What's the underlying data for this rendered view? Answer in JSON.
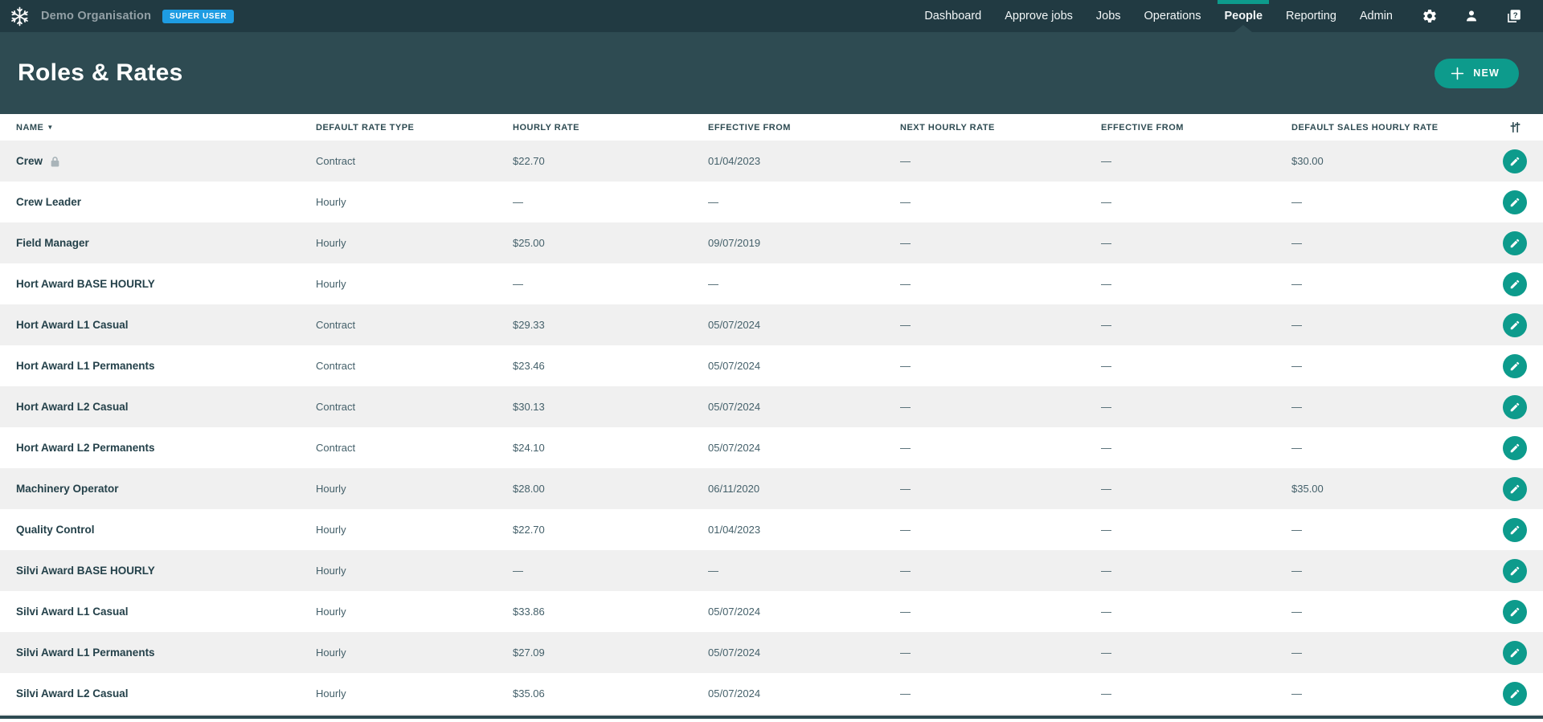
{
  "colors": {
    "topbar_bg": "#213A42",
    "header_bg": "#2E4B52",
    "accent_teal": "#0D9B8C",
    "badge_blue": "#1E9CE2",
    "row_alt_bg": "#F0F0F0",
    "header_text": "#2E4B52",
    "cell_text": "#44606A",
    "name_text": "#24414A"
  },
  "topbar": {
    "logo_icon": "snowflake-icon",
    "org_name": "Demo Organisation",
    "badge": "SUPER USER",
    "nav": [
      {
        "label": "Dashboard",
        "active": false
      },
      {
        "label": "Approve jobs",
        "active": false
      },
      {
        "label": "Jobs",
        "active": false
      },
      {
        "label": "Operations",
        "active": false
      },
      {
        "label": "People",
        "active": true
      },
      {
        "label": "Reporting",
        "active": false
      },
      {
        "label": "Admin",
        "active": false
      }
    ],
    "icons": [
      "gear-icon",
      "user-icon",
      "help-icon"
    ]
  },
  "header": {
    "title": "Roles & Rates",
    "new_button_label": "NEW",
    "new_button_icon": "plus-icon"
  },
  "table": {
    "columns": [
      {
        "key": "name",
        "label": "NAME",
        "sort": "desc"
      },
      {
        "key": "rate_type",
        "label": "DEFAULT RATE TYPE"
      },
      {
        "key": "hourly_rate",
        "label": "HOURLY RATE"
      },
      {
        "key": "effective_from",
        "label": "EFFECTIVE FROM"
      },
      {
        "key": "next_hourly_rate",
        "label": "NEXT HOURLY RATE"
      },
      {
        "key": "next_effective_from",
        "label": "EFFECTIVE FROM"
      },
      {
        "key": "sales_rate",
        "label": "DEFAULT SALES HOURLY RATE"
      }
    ],
    "header_icon": "column-settings-icon",
    "row_action_icon": "pencil-icon",
    "rows": [
      {
        "name": "Crew",
        "locked": true,
        "rate_type": "Contract",
        "hourly_rate": "$22.70",
        "effective_from": "01/04/2023",
        "next_hourly_rate": "—",
        "next_effective_from": "—",
        "sales_rate": "$30.00"
      },
      {
        "name": "Crew Leader",
        "locked": false,
        "rate_type": "Hourly",
        "hourly_rate": "—",
        "effective_from": "—",
        "next_hourly_rate": "—",
        "next_effective_from": "—",
        "sales_rate": "—"
      },
      {
        "name": "Field Manager",
        "locked": false,
        "rate_type": "Hourly",
        "hourly_rate": "$25.00",
        "effective_from": "09/07/2019",
        "next_hourly_rate": "—",
        "next_effective_from": "—",
        "sales_rate": "—"
      },
      {
        "name": "Hort Award BASE HOURLY",
        "locked": false,
        "rate_type": "Hourly",
        "hourly_rate": "—",
        "effective_from": "—",
        "next_hourly_rate": "—",
        "next_effective_from": "—",
        "sales_rate": "—"
      },
      {
        "name": "Hort Award L1 Casual",
        "locked": false,
        "rate_type": "Contract",
        "hourly_rate": "$29.33",
        "effective_from": "05/07/2024",
        "next_hourly_rate": "—",
        "next_effective_from": "—",
        "sales_rate": "—"
      },
      {
        "name": "Hort Award L1 Permanents",
        "locked": false,
        "rate_type": "Contract",
        "hourly_rate": "$23.46",
        "effective_from": "05/07/2024",
        "next_hourly_rate": "—",
        "next_effective_from": "—",
        "sales_rate": "—"
      },
      {
        "name": "Hort Award L2 Casual",
        "locked": false,
        "rate_type": "Contract",
        "hourly_rate": "$30.13",
        "effective_from": "05/07/2024",
        "next_hourly_rate": "—",
        "next_effective_from": "—",
        "sales_rate": "—"
      },
      {
        "name": "Hort Award L2 Permanents",
        "locked": false,
        "rate_type": "Contract",
        "hourly_rate": "$24.10",
        "effective_from": "05/07/2024",
        "next_hourly_rate": "—",
        "next_effective_from": "—",
        "sales_rate": "—"
      },
      {
        "name": "Machinery Operator",
        "locked": false,
        "rate_type": "Hourly",
        "hourly_rate": "$28.00",
        "effective_from": "06/11/2020",
        "next_hourly_rate": "—",
        "next_effective_from": "—",
        "sales_rate": "$35.00"
      },
      {
        "name": "Quality Control",
        "locked": false,
        "rate_type": "Hourly",
        "hourly_rate": "$22.70",
        "effective_from": "01/04/2023",
        "next_hourly_rate": "—",
        "next_effective_from": "—",
        "sales_rate": "—"
      },
      {
        "name": "Silvi Award BASE HOURLY",
        "locked": false,
        "rate_type": "Hourly",
        "hourly_rate": "—",
        "effective_from": "—",
        "next_hourly_rate": "—",
        "next_effective_from": "—",
        "sales_rate": "—"
      },
      {
        "name": "Silvi Award L1 Casual",
        "locked": false,
        "rate_type": "Hourly",
        "hourly_rate": "$33.86",
        "effective_from": "05/07/2024",
        "next_hourly_rate": "—",
        "next_effective_from": "—",
        "sales_rate": "—"
      },
      {
        "name": "Silvi Award L1 Permanents",
        "locked": false,
        "rate_type": "Hourly",
        "hourly_rate": "$27.09",
        "effective_from": "05/07/2024",
        "next_hourly_rate": "—",
        "next_effective_from": "—",
        "sales_rate": "—"
      },
      {
        "name": "Silvi Award L2 Casual",
        "locked": false,
        "rate_type": "Hourly",
        "hourly_rate": "$35.06",
        "effective_from": "05/07/2024",
        "next_hourly_rate": "—",
        "next_effective_from": "—",
        "sales_rate": "—"
      }
    ]
  }
}
